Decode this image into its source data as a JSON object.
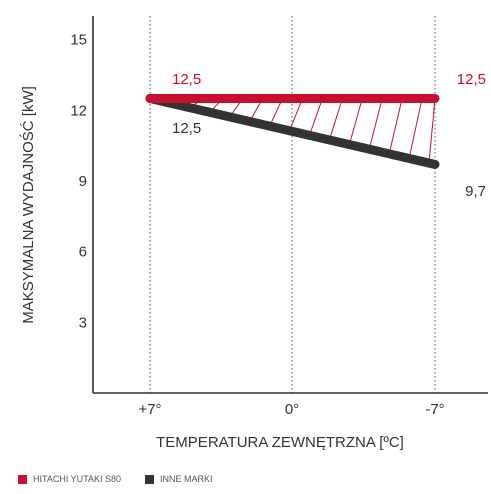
{
  "chart_data": {
    "type": "line",
    "xlabel": "TEMPERATURA ZEWNĘTRZNA [ºC]",
    "ylabel": "MAKSYMALNA WYDAJNOŚĆ [kW]",
    "x_tick_labels": [
      "+7°",
      "0°",
      "-7°"
    ],
    "y_ticks": [
      3,
      6,
      9,
      12,
      15
    ],
    "ylim": [
      0,
      16
    ],
    "grid": "vertical-dotted",
    "legend_position": "bottom-left",
    "series": [
      {
        "name": "HITACHI YUTAKI S80",
        "color": "#c8102e",
        "values": [
          12.5,
          12.5
        ],
        "labels": [
          "12,5",
          "12,5"
        ]
      },
      {
        "name": "INNE MARKI",
        "color": "#333333",
        "values": [
          12.5,
          9.7
        ],
        "labels": [
          "12,5",
          "9,7"
        ]
      }
    ],
    "hatch_between_series": true
  }
}
